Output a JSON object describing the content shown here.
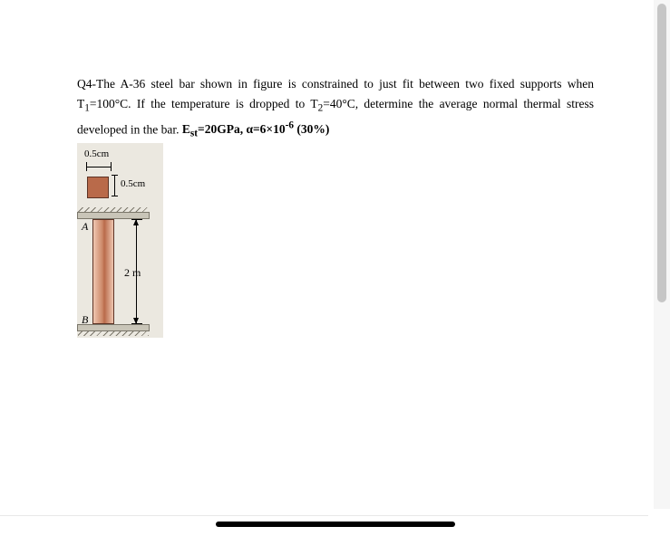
{
  "problem": {
    "qno": "Q4-",
    "text1": "The A-36 steel bar shown in figure is constrained to just fit between two fixed supports when T",
    "t1sub": "1",
    "t1val": "=100°C.",
    "text2": "If the temperature is dropped to T",
    "t2sub": "2",
    "t2val": "=40°C, determine the average normal thermal stress developed in the",
    "text3_prefix": "bar. ",
    "params": "E",
    "params_sub": "st",
    "params_rest": "=20GPa, α=6×10",
    "params_exp": "-6",
    "params_tail": " (30%)"
  },
  "figure": {
    "width_label": "0.5cm",
    "depth_label": "0.5cm",
    "length_label": "2 m",
    "pointA": "A",
    "pointB": "B",
    "cross_section_color": "#b96a4a",
    "bar_border_color": "#5c3224",
    "support_color": "#c9c5b8",
    "background": "#ebe8e0"
  }
}
